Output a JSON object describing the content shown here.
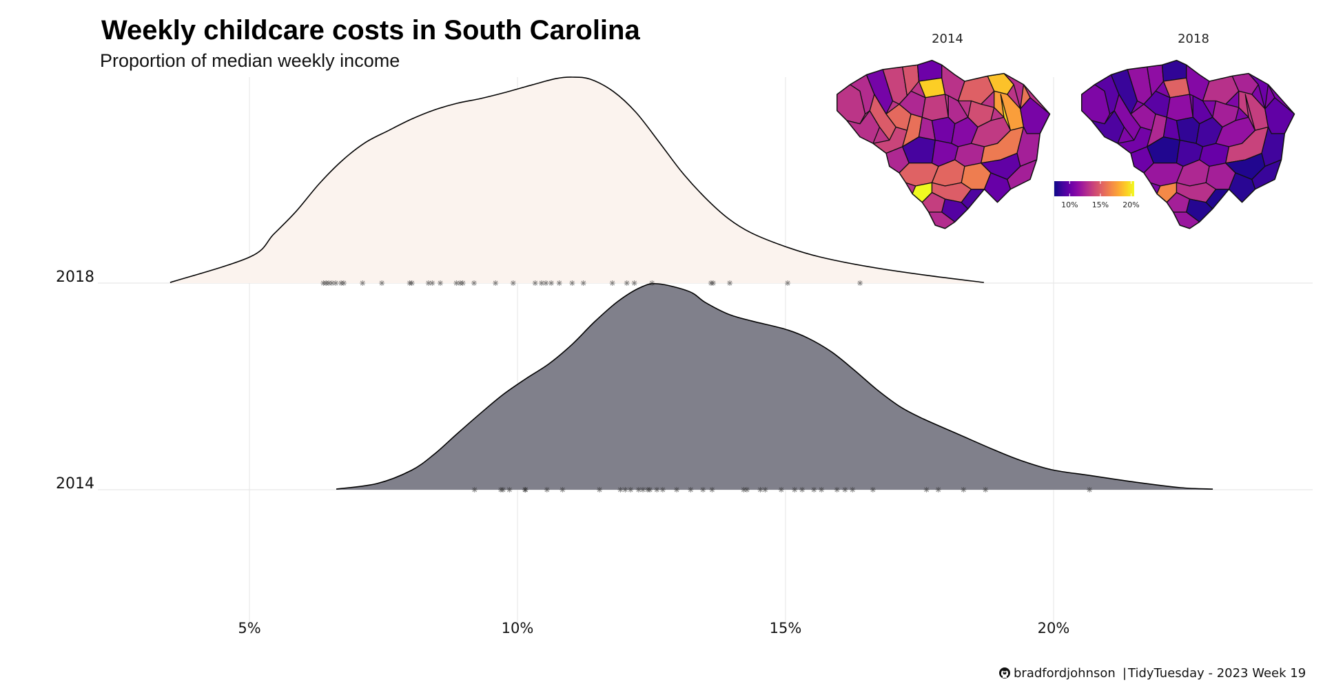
{
  "chart_data": {
    "type": "ridgeline-density",
    "title": "Weekly childcare costs in South Carolina",
    "subtitle": "Proportion of median weekly income",
    "xlabel": "",
    "ylabel": "",
    "xlim": [
      3.5,
      24.5
    ],
    "x_ticks": [
      5,
      10,
      15,
      20
    ],
    "x_tick_labels": [
      "5%",
      "10%",
      "15%",
      "20%"
    ],
    "grid": true,
    "categories": [
      "2018",
      "2014"
    ],
    "series": [
      {
        "name": "2018",
        "fill": "#FBF3EE",
        "density_x": [
          3.52,
          5.01,
          5.45,
          5.87,
          6.3,
          6.73,
          7.16,
          7.58,
          8.02,
          8.44,
          8.87,
          9.31,
          9.73,
          10.28,
          10.72,
          11.02,
          11.36,
          11.79,
          12.21,
          12.65,
          13.07,
          13.5,
          13.93,
          14.36,
          15.0,
          15.64,
          16.54,
          17.57,
          18.7
        ],
        "density_y": [
          0.003,
          0.127,
          0.237,
          0.348,
          0.482,
          0.595,
          0.682,
          0.739,
          0.796,
          0.84,
          0.873,
          0.896,
          0.923,
          0.963,
          0.993,
          1.0,
          0.99,
          0.93,
          0.829,
          0.682,
          0.538,
          0.415,
          0.314,
          0.244,
          0.177,
          0.127,
          0.08,
          0.04,
          0.003
        ],
        "rug": [
          6.38,
          6.43,
          6.48,
          6.54,
          6.61,
          6.71,
          6.76,
          7.11,
          7.47,
          7.99,
          8.03,
          8.34,
          8.41,
          8.56,
          8.86,
          8.93,
          8.98,
          9.19,
          9.59,
          9.92,
          10.33,
          10.45,
          10.53,
          10.63,
          10.78,
          11.02,
          11.23,
          11.77,
          12.04,
          12.18,
          12.51,
          13.61,
          13.65,
          13.96,
          15.04,
          16.39
        ]
      },
      {
        "name": "2014",
        "fill": "#80808B",
        "density_x": [
          6.62,
          7.38,
          8.02,
          8.44,
          8.87,
          9.31,
          9.73,
          10.15,
          10.59,
          11.02,
          11.44,
          11.88,
          12.3,
          12.62,
          13.2,
          13.5,
          13.93,
          14.36,
          15.0,
          15.42,
          15.86,
          16.29,
          16.71,
          17.15,
          17.57,
          18.21,
          18.86,
          19.37,
          19.97,
          20.66,
          21.52,
          22.37,
          22.97
        ],
        "density_y": [
          0.003,
          0.03,
          0.094,
          0.171,
          0.271,
          0.371,
          0.462,
          0.538,
          0.612,
          0.706,
          0.816,
          0.916,
          0.983,
          1.0,
          0.963,
          0.91,
          0.853,
          0.82,
          0.779,
          0.736,
          0.669,
          0.579,
          0.485,
          0.401,
          0.344,
          0.271,
          0.197,
          0.144,
          0.097,
          0.07,
          0.037,
          0.01,
          0.003
        ],
        "rug": [
          9.2,
          9.69,
          9.73,
          9.85,
          10.14,
          10.15,
          10.55,
          10.84,
          11.53,
          11.92,
          12.01,
          12.11,
          12.26,
          12.34,
          12.43,
          12.47,
          12.6,
          12.71,
          12.97,
          13.23,
          13.46,
          13.63,
          14.22,
          14.28,
          14.53,
          14.62,
          14.92,
          15.17,
          15.31,
          15.53,
          15.67,
          15.96,
          16.11,
          16.25,
          16.63,
          17.63,
          17.85,
          18.32,
          18.73,
          20.67
        ]
      }
    ],
    "inset_maps": {
      "legend": {
        "type": "color-gradient",
        "palette": "plasma",
        "range": [
          7.5,
          20.5
        ],
        "ticks": [
          10,
          15,
          20
        ],
        "tick_labels": [
          "10%",
          "15%",
          "20%"
        ]
      },
      "maps": [
        {
          "title": "2014",
          "county_values": [
            13.2,
            12.8,
            10.5,
            13.8,
            14.6,
            10.2,
            13.0,
            14.9,
            15.5,
            19.2,
            12.6,
            13.5,
            13.1,
            15.1,
            18.8,
            12.9,
            17.6,
            10.6,
            14.3,
            12.7,
            13.9,
            15.8,
            12.4,
            10.4,
            11.1,
            12.6,
            9.0,
            13.4,
            10.8,
            12.5,
            16.2,
            12.2,
            19.4,
            15.2,
            15.4,
            16.3,
            9.8,
            12.2,
            10.0,
            21.0,
            15.0,
            13.6,
            9.4,
            12.8,
            9.2,
            16.0
          ]
        },
        {
          "title": "2018",
          "county_values": [
            10.8,
            9.6,
            8.6,
            11.6,
            11.4,
            8.4,
            9.2,
            11.0,
            11.8,
            15.2,
            9.6,
            11.4,
            11.0,
            13.0,
            12.4,
            10.2,
            13.6,
            9.8,
            12.2,
            9.8,
            10.4,
            12.6,
            9.8,
            8.4,
            8.9,
            10.2,
            8.0,
            11.6,
            9.0,
            10.0,
            13.8,
            8.8,
            13.2,
            11.8,
            12.6,
            12.2,
            8.0,
            8.6,
            8.2,
            16.8,
            13.0,
            12.2,
            8.1,
            11.8,
            8.0,
            10.8
          ]
        }
      ]
    }
  },
  "caption": {
    "icon": "github-icon",
    "handle": "bradfordjohnson",
    "separator": "|",
    "source": "TidyTuesday - 2023 Week 19"
  }
}
